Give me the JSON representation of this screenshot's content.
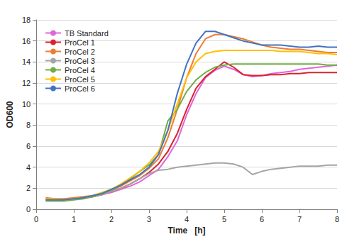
{
  "chart_data": {
    "type": "line",
    "x_label": "Time   [h]",
    "y_label": "OD600",
    "x": [
      0.25,
      0.5,
      0.75,
      1,
      1.25,
      1.5,
      1.75,
      2,
      2.25,
      2.5,
      2.75,
      3,
      3.25,
      3.5,
      3.75,
      4,
      4.25,
      4.5,
      4.75,
      5,
      5.25,
      5.5,
      5.75,
      6,
      6.25,
      6.5,
      6.75,
      7,
      7.25,
      7.5,
      7.75,
      8
    ],
    "series": [
      {
        "name": "TB Standard",
        "color": "#e066d8",
        "values": [
          1.0,
          0.9,
          0.9,
          1.0,
          1.1,
          1.2,
          1.4,
          1.6,
          1.9,
          2.2,
          2.6,
          3.2,
          3.8,
          5.0,
          6.5,
          9.0,
          11.0,
          12.5,
          13.2,
          13.6,
          13.3,
          12.8,
          12.6,
          12.7,
          12.9,
          13.0,
          13.1,
          13.3,
          13.4,
          13.5,
          13.6,
          13.7
        ]
      },
      {
        "name": "ProCel 1",
        "color": "#d9232e",
        "values": [
          1.0,
          1.0,
          0.9,
          1.0,
          1.1,
          1.2,
          1.4,
          1.7,
          2.0,
          2.4,
          2.9,
          3.5,
          4.3,
          5.5,
          7.2,
          9.5,
          11.5,
          12.6,
          13.3,
          14.0,
          13.5,
          12.8,
          12.7,
          12.7,
          12.8,
          12.8,
          12.9,
          12.9,
          13.0,
          13.0,
          13.0,
          13.0
        ]
      },
      {
        "name": "ProCel 2",
        "color": "#ed7d31",
        "values": [
          1.1,
          1.0,
          1.0,
          1.1,
          1.2,
          1.3,
          1.5,
          1.8,
          2.2,
          2.7,
          3.2,
          3.9,
          4.8,
          6.8,
          9.5,
          12.5,
          14.8,
          16.2,
          16.6,
          16.6,
          16.4,
          16.2,
          15.9,
          15.6,
          15.4,
          15.3,
          15.2,
          15.2,
          15.1,
          15.0,
          14.9,
          14.9
        ]
      },
      {
        "name": "ProCel 3",
        "color": "#a5a5a5",
        "values": [
          0.8,
          0.8,
          0.8,
          1.0,
          1.1,
          1.2,
          1.4,
          1.7,
          2.0,
          2.4,
          2.9,
          3.4,
          3.7,
          3.8,
          4.0,
          4.1,
          4.2,
          4.3,
          4.4,
          4.4,
          4.3,
          4.0,
          3.3,
          3.6,
          3.8,
          3.9,
          4.0,
          4.1,
          4.1,
          4.1,
          4.2,
          4.2
        ]
      },
      {
        "name": "ProCel 4",
        "color": "#70ad47",
        "values": [
          0.8,
          0.8,
          0.8,
          0.9,
          1.0,
          1.2,
          1.5,
          1.8,
          2.3,
          2.9,
          3.6,
          4.2,
          5.2,
          8.4,
          9.5,
          11.2,
          12.3,
          13.0,
          13.5,
          13.7,
          13.8,
          13.8,
          13.8,
          13.8,
          13.8,
          13.8,
          13.8,
          13.8,
          13.8,
          13.8,
          13.7,
          13.7
        ]
      },
      {
        "name": "ProCel 5",
        "color": "#ffc000",
        "values": [
          1.0,
          1.0,
          0.9,
          1.0,
          1.1,
          1.3,
          1.6,
          1.9,
          2.4,
          3.0,
          3.6,
          4.4,
          5.5,
          7.5,
          10.0,
          12.5,
          14.0,
          14.8,
          15.0,
          15.1,
          15.1,
          15.1,
          15.1,
          15.1,
          15.1,
          15.0,
          15.0,
          15.0,
          14.9,
          14.8,
          14.8,
          14.7
        ]
      },
      {
        "name": "ProCel 6",
        "color": "#4472c4",
        "values": [
          0.9,
          0.9,
          0.9,
          1.0,
          1.1,
          1.3,
          1.5,
          1.9,
          2.3,
          2.8,
          3.3,
          4.0,
          5.2,
          7.5,
          11.0,
          13.8,
          15.8,
          16.9,
          16.9,
          16.6,
          16.3,
          16.0,
          15.8,
          15.6,
          15.6,
          15.6,
          15.5,
          15.4,
          15.4,
          15.5,
          15.4,
          15.4
        ]
      }
    ],
    "xlim": [
      0,
      8
    ],
    "xticks": [
      0,
      1,
      2,
      3,
      4,
      5,
      6,
      7,
      8
    ],
    "ylim": [
      0,
      18
    ],
    "yticks": [
      0,
      2,
      4,
      6,
      8,
      10,
      12,
      14,
      16,
      18
    ],
    "grid": true,
    "legend": "upper left"
  }
}
